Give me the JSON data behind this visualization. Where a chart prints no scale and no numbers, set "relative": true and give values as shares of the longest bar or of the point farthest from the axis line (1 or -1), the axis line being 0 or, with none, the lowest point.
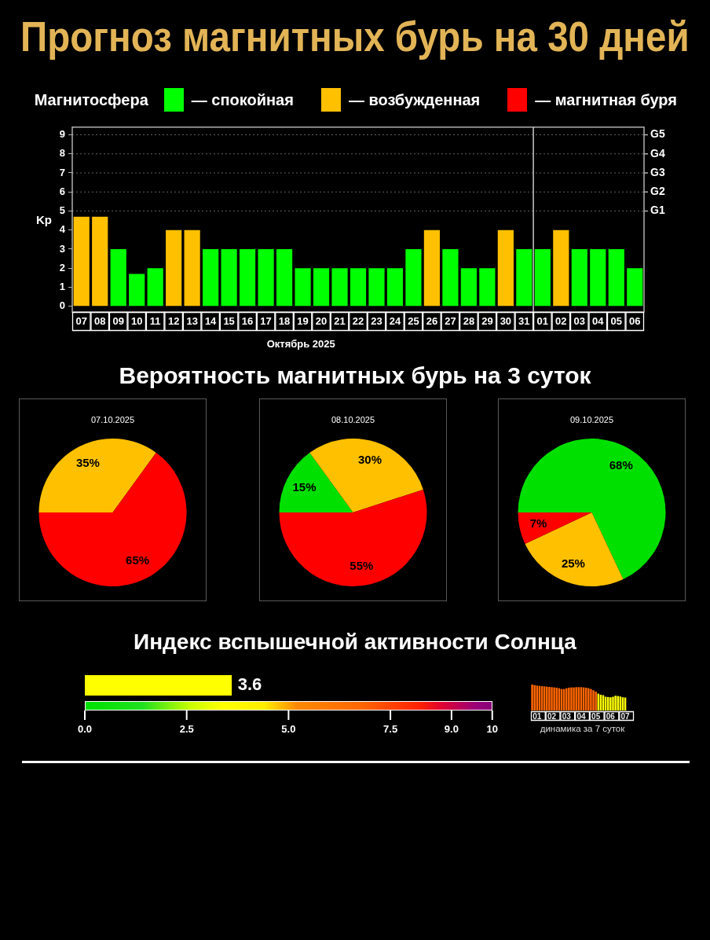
{
  "chart_data": [
    {
      "type": "bar",
      "title": "Прогноз магнитных бурь на 30 дней",
      "legend": "top right",
      "legend_title": "Магнитосфера",
      "ylabel": "Kp",
      "xlabel": "Октябрь 2025",
      "stacked": true,
      "categories": [
        "07",
        "08",
        "09",
        "10",
        "11",
        "12",
        "13",
        "14",
        "15",
        "16",
        "17",
        "18",
        "19",
        "20",
        "21",
        "22",
        "23",
        "24",
        "25",
        "26",
        "27",
        "28",
        "29",
        "30",
        "31",
        "01",
        "02",
        "03",
        "04",
        "05",
        "06"
      ],
      "series": [
        {
          "name": "— спокойная",
          "color": "#00ff00",
          "values": [
            null,
            null,
            3,
            1.7,
            2,
            null,
            null,
            3,
            3,
            3,
            3,
            3,
            2,
            2,
            2,
            2,
            2,
            2,
            3,
            null,
            3,
            2,
            2,
            null,
            3,
            3,
            null,
            3,
            3,
            3,
            2
          ]
        },
        {
          "name": "— возбужденная",
          "color": "#ffc000",
          "values": [
            4.7,
            4.7,
            null,
            null,
            null,
            4,
            4,
            null,
            null,
            null,
            null,
            null,
            null,
            null,
            null,
            null,
            null,
            null,
            null,
            4,
            null,
            null,
            null,
            4,
            null,
            null,
            4,
            null,
            null,
            null,
            null
          ]
        },
        {
          "name": "— магнитная буря",
          "color": "#ff0000",
          "values": [
            null,
            null,
            null,
            null,
            null,
            null,
            null,
            null,
            null,
            null,
            null,
            null,
            null,
            null,
            null,
            null,
            null,
            null,
            null,
            null,
            null,
            null,
            null,
            null,
            null,
            null,
            null,
            null,
            null,
            null,
            null
          ]
        }
      ],
      "ylim": [
        -0.3,
        9.4
      ],
      "yticks": [
        0,
        1,
        2,
        3,
        4,
        5,
        6,
        7,
        8,
        9
      ],
      "ref_lines": [
        {
          "axis": "y",
          "value": 5,
          "label": "G1",
          "color": "#606060",
          "line_style": "dotted"
        },
        {
          "axis": "y",
          "value": 6,
          "label": "G2",
          "color": "#606060",
          "line_style": "dotted"
        },
        {
          "axis": "y",
          "value": 7,
          "label": "G3",
          "color": "#606060",
          "line_style": "dotted"
        },
        {
          "axis": "y",
          "value": 8,
          "label": "G4",
          "color": "#606060",
          "line_style": "dotted"
        },
        {
          "axis": "y",
          "value": 9,
          "label": "G5",
          "color": "#606060",
          "line_style": "dotted"
        },
        {
          "axis": "x",
          "value": "01",
          "color": "#c8c8c8"
        }
      ]
    },
    {
      "type": "pie",
      "title": "Вероятность магнитных бурь на 3 суток",
      "subtitle": "07.10.2025",
      "categories": [
        null,
        null
      ],
      "values": [
        35,
        65
      ],
      "colors": [
        "#ffc000",
        "#ff0000"
      ],
      "value_labels": [
        "35%",
        "65%"
      ]
    },
    {
      "type": "pie",
      "title": "08.10.2025",
      "categories": [
        null,
        null,
        null
      ],
      "values": [
        15,
        30,
        55
      ],
      "colors": [
        "#00e000",
        "#ffc000",
        "#ff0000"
      ],
      "value_labels": [
        "15%",
        "30%",
        "55%"
      ]
    },
    {
      "type": "pie",
      "title": "09.10.2025",
      "categories": [
        null,
        null,
        null
      ],
      "values": [
        68,
        25,
        7
      ],
      "colors": [
        "#00e000",
        "#ffc000",
        "#ff0000"
      ],
      "value_labels": [
        "68%",
        "25%",
        "7%"
      ]
    },
    {
      "type": "bar",
      "orientation": "horizontal",
      "title": "Индекс вспышечной активности Солнца",
      "categories": [
        null
      ],
      "values": [
        3.6
      ],
      "color": "#ffff00",
      "data_labels": true,
      "xlim": [
        0,
        10
      ],
      "xticks": [
        {
          "value": 0,
          "label": "0.0"
        },
        2.5,
        {
          "value": 5,
          "label": "5.0"
        },
        7.5,
        {
          "value": 9,
          "label": "9.0"
        },
        10
      ]
    },
    {
      "type": "bar",
      "relative": true,
      "xlabel": "динамика за 7 суток",
      "categories": [
        null,
        null,
        "01",
        null,
        null,
        null,
        null,
        null,
        "02",
        null,
        null,
        null,
        null,
        null,
        "03",
        null,
        null,
        null,
        null,
        null,
        "04",
        null,
        null,
        null,
        null,
        null,
        "05",
        null,
        null,
        null,
        null,
        null,
        "06",
        null,
        null,
        null,
        null,
        null,
        "07",
        null,
        null,
        null
      ],
      "values": [
        1,
        0.98,
        0.96,
        0.95,
        0.94,
        0.93,
        0.92,
        0.91,
        0.9,
        0.89,
        0.88,
        0.86,
        0.83,
        0.83,
        0.86,
        0.88,
        0.89,
        0.89,
        0.9,
        0.9,
        0.9,
        0.89,
        0.88,
        0.86,
        0.83,
        0.78,
        0.73,
        0.65,
        0.61,
        0.59,
        0.53,
        0.52,
        0.51,
        0.53,
        0.57,
        0.56,
        0.54,
        0.51,
        0.5,
        null,
        null,
        null
      ],
      "colors": [
        "#ff6600",
        "#ff6600",
        "#ff6600",
        "#ff6600",
        "#ff6600",
        "#ff6600",
        "#ff6600",
        "#ff6600",
        "#ff6600",
        "#ff6600",
        "#ff6600",
        "#ff6600",
        "#ff6600",
        "#ff6600",
        "#ff6600",
        "#ff6600",
        "#ff6600",
        "#ff6600",
        "#ff6600",
        "#ff6600",
        "#ff6600",
        "#ff6600",
        "#ff6600",
        "#ff6600",
        "#ff6600",
        "#ff6600",
        "#ff6600",
        "#ffff00",
        "#ffff00",
        "#ffff00",
        "#ffff00",
        "#ffff00",
        "#ffff00",
        "#ffff00",
        "#ffff00",
        "#ffff00",
        "#ffff00",
        "#ffff00",
        "#ffff00",
        "#ffff00",
        "#ffff00",
        "#ffff00"
      ]
    }
  ]
}
